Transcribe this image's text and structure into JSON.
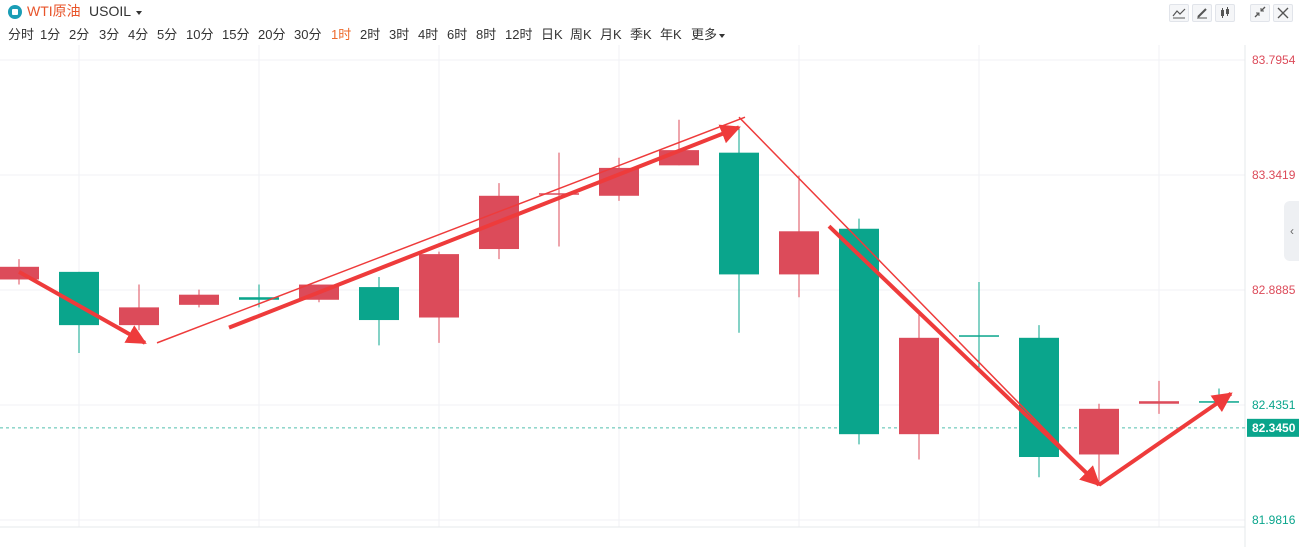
{
  "header": {
    "title": "WTI原油",
    "symbol": "USOIL",
    "tools": [
      "chart-line-icon",
      "pencil-icon",
      "candles-icon",
      "shrink-icon",
      "close-icon"
    ]
  },
  "periods": [
    {
      "label": "分时",
      "active": false
    },
    {
      "label": "1分",
      "active": false
    },
    {
      "label": "2分",
      "active": false
    },
    {
      "label": "3分",
      "active": false
    },
    {
      "label": "4分",
      "active": false
    },
    {
      "label": "5分",
      "active": false
    },
    {
      "label": "10分",
      "active": false
    },
    {
      "label": "15分",
      "active": false
    },
    {
      "label": "20分",
      "active": false
    },
    {
      "label": "30分",
      "active": false
    },
    {
      "label": "1时",
      "active": true
    },
    {
      "label": "2时",
      "active": false
    },
    {
      "label": "3时",
      "active": false
    },
    {
      "label": "4时",
      "active": false
    },
    {
      "label": "6时",
      "active": false
    },
    {
      "label": "8时",
      "active": false
    },
    {
      "label": "12时",
      "active": false
    },
    {
      "label": "日K",
      "active": false
    },
    {
      "label": "周K",
      "active": false
    },
    {
      "label": "月K",
      "active": false
    },
    {
      "label": "季K",
      "active": false
    },
    {
      "label": "年K",
      "active": false
    },
    {
      "label": "更多",
      "active": false
    }
  ],
  "colors": {
    "up": "#dc4b5a",
    "down": "#0aa58c",
    "arrow": "#ee3b3b",
    "accent": "#ed6a2b",
    "grid": "#f0f2f5"
  },
  "chart_data": {
    "type": "candlestick",
    "y_ticks": [
      "83.7954",
      "83.3419",
      "82.8885",
      "82.4351",
      "81.9816"
    ],
    "ylim": [
      81.9816,
      83.7954
    ],
    "current_price": "82.3450",
    "candles": [
      {
        "o": 82.98,
        "c": 82.93,
        "h": 83.01,
        "l": 82.91,
        "dir": "up"
      },
      {
        "o": 82.96,
        "c": 82.75,
        "h": 82.96,
        "l": 82.64,
        "dir": "down"
      },
      {
        "o": 82.75,
        "c": 82.82,
        "h": 82.91,
        "l": 82.73,
        "dir": "up"
      },
      {
        "o": 82.83,
        "c": 82.87,
        "h": 82.89,
        "l": 82.82,
        "dir": "up"
      },
      {
        "o": 82.86,
        "c": 82.85,
        "h": 82.91,
        "l": 82.82,
        "dir": "down"
      },
      {
        "o": 82.85,
        "c": 82.91,
        "h": 82.91,
        "l": 82.84,
        "dir": "up"
      },
      {
        "o": 82.9,
        "c": 82.77,
        "h": 82.94,
        "l": 82.67,
        "dir": "down"
      },
      {
        "o": 82.78,
        "c": 83.03,
        "h": 83.04,
        "l": 82.68,
        "dir": "up"
      },
      {
        "o": 83.05,
        "c": 83.26,
        "h": 83.31,
        "l": 83.01,
        "dir": "up"
      },
      {
        "o": 83.27,
        "c": 83.27,
        "h": 83.43,
        "l": 83.06,
        "dir": "up"
      },
      {
        "o": 83.26,
        "c": 83.37,
        "h": 83.41,
        "l": 83.24,
        "dir": "up"
      },
      {
        "o": 83.38,
        "c": 83.44,
        "h": 83.56,
        "l": 83.38,
        "dir": "up"
      },
      {
        "o": 83.43,
        "c": 82.95,
        "h": 83.53,
        "l": 82.72,
        "dir": "down"
      },
      {
        "o": 82.95,
        "c": 83.12,
        "h": 83.34,
        "l": 82.86,
        "dir": "up"
      },
      {
        "o": 83.13,
        "c": 82.32,
        "h": 83.17,
        "l": 82.28,
        "dir": "down"
      },
      {
        "o": 82.32,
        "c": 82.7,
        "h": 82.8,
        "l": 82.22,
        "dir": "up"
      },
      {
        "o": 82.71,
        "c": 82.71,
        "h": 82.92,
        "l": 82.58,
        "dir": "down"
      },
      {
        "o": 82.7,
        "c": 82.23,
        "h": 82.75,
        "l": 82.15,
        "dir": "down"
      },
      {
        "o": 82.24,
        "c": 82.42,
        "h": 82.44,
        "l": 82.12,
        "dir": "up"
      },
      {
        "o": 82.44,
        "c": 82.45,
        "h": 82.53,
        "l": 82.4,
        "dir": "up"
      },
      {
        "o": 82.45,
        "c": 82.45,
        "h": 82.5,
        "l": 82.43,
        "dir": "down"
      }
    ],
    "annotations": [
      {
        "from": [
          0,
          82.96
        ],
        "to": [
          2.1,
          82.68
        ],
        "head": true
      },
      {
        "from": [
          2.3,
          82.68
        ],
        "to": [
          12.1,
          83.57
        ],
        "head": false
      },
      {
        "from": [
          3.5,
          82.74
        ],
        "to": [
          12.0,
          83.53
        ],
        "head": true
      },
      {
        "from": [
          12.0,
          83.57
        ],
        "to": [
          18.0,
          82.12
        ],
        "head": false
      },
      {
        "from": [
          13.5,
          83.14
        ],
        "to": [
          18.0,
          82.12
        ],
        "head": true
      },
      {
        "from": [
          18.0,
          82.12
        ],
        "to": [
          20.2,
          82.48
        ],
        "head": true
      }
    ]
  }
}
